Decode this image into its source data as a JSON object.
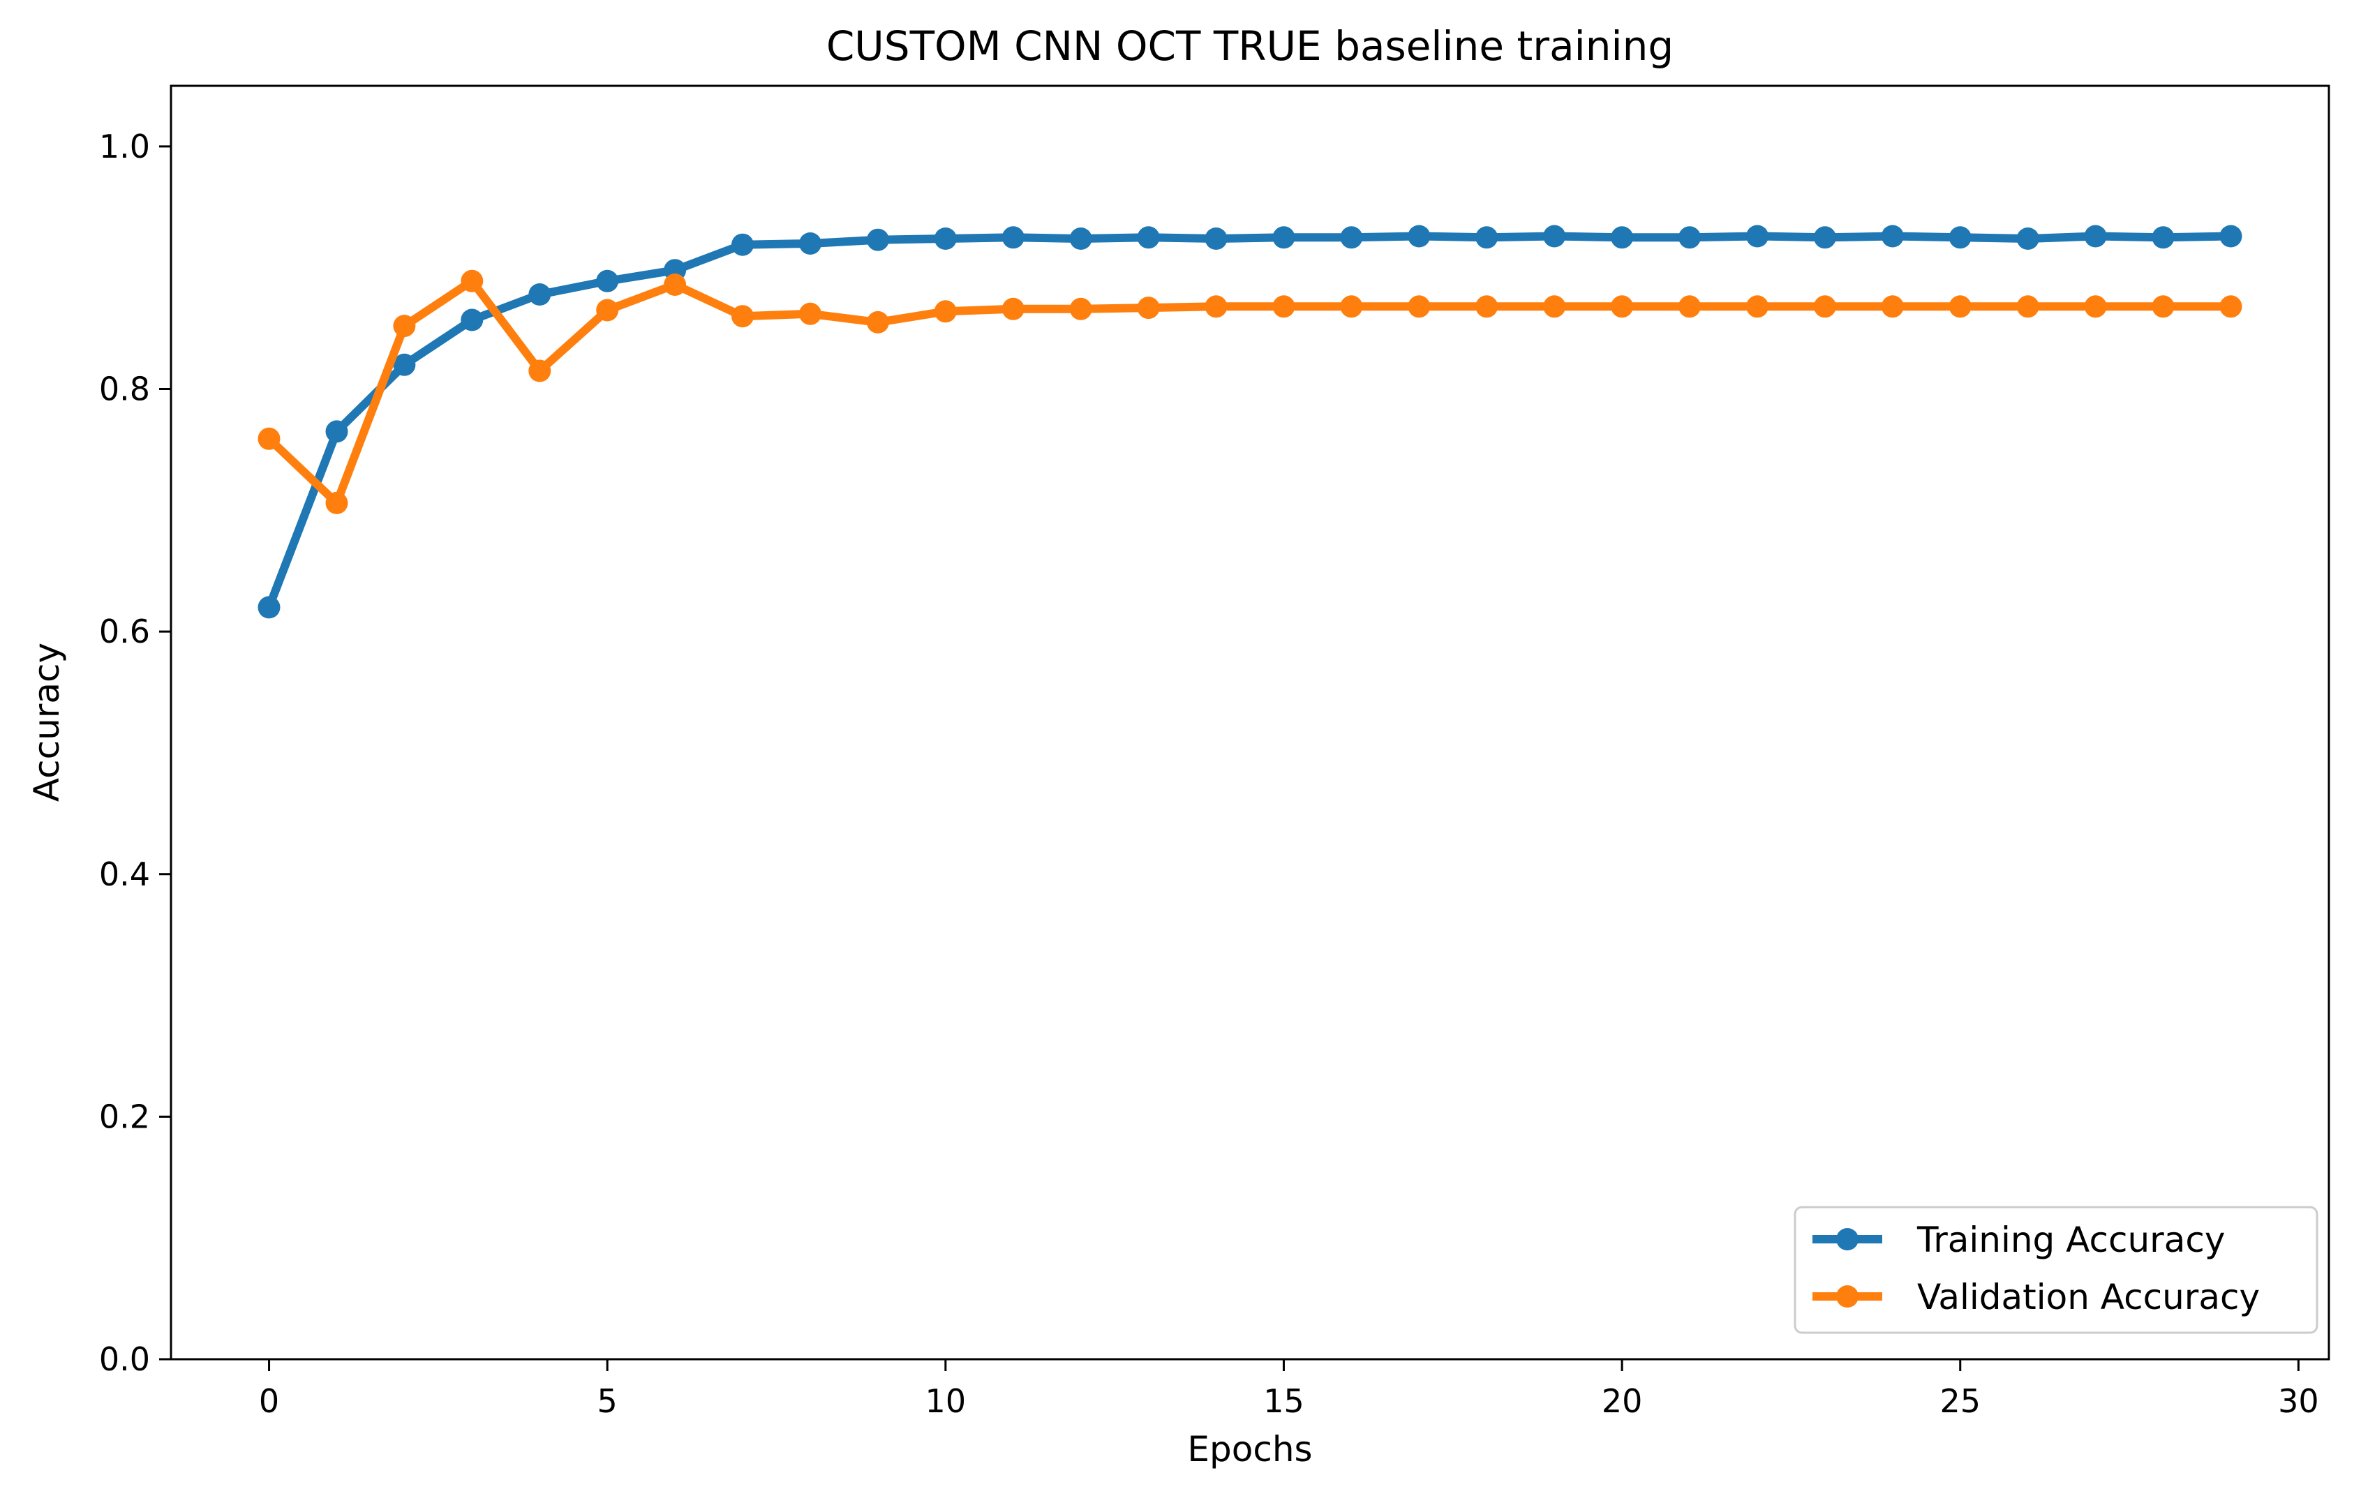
{
  "chart_data": {
    "type": "line",
    "title": "CUSTOM CNN OCT TRUE baseline training",
    "xlabel": "Epochs",
    "ylabel": "Accuracy",
    "xlim": [
      -1.45,
      30.45
    ],
    "ylim": [
      0.0,
      1.05
    ],
    "xticks": [
      0,
      5,
      10,
      15,
      20,
      25,
      30
    ],
    "yticks": [
      0.0,
      0.2,
      0.4,
      0.6,
      0.8,
      1.0
    ],
    "grid": false,
    "legend_position": "lower-right",
    "x": [
      0,
      1,
      2,
      3,
      4,
      5,
      6,
      7,
      8,
      9,
      10,
      11,
      12,
      13,
      14,
      15,
      16,
      17,
      18,
      19,
      20,
      21,
      22,
      23,
      24,
      25,
      26,
      27,
      28,
      29
    ],
    "series": [
      {
        "name": "Training Accuracy",
        "color": "#1f77b4",
        "values": [
          0.62,
          0.765,
          0.82,
          0.857,
          0.878,
          0.889,
          0.898,
          0.919,
          0.92,
          0.923,
          0.924,
          0.925,
          0.924,
          0.925,
          0.924,
          0.925,
          0.925,
          0.926,
          0.925,
          0.926,
          0.925,
          0.925,
          0.926,
          0.925,
          0.926,
          0.925,
          0.924,
          0.926,
          0.925,
          0.926
        ]
      },
      {
        "name": "Validation Accuracy",
        "color": "#ff7f0e",
        "values": [
          0.759,
          0.706,
          0.852,
          0.889,
          0.815,
          0.865,
          0.886,
          0.86,
          0.862,
          0.855,
          0.864,
          0.866,
          0.866,
          0.867,
          0.868,
          0.868,
          0.868,
          0.868,
          0.868,
          0.868,
          0.868,
          0.868,
          0.868,
          0.868,
          0.868,
          0.868,
          0.868,
          0.868,
          0.868,
          0.868
        ]
      }
    ]
  }
}
